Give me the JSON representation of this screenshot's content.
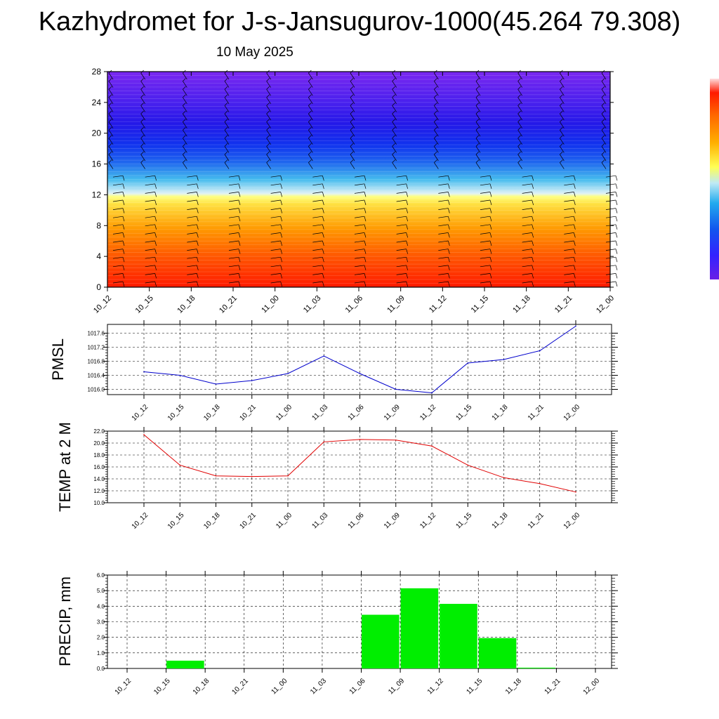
{
  "header": {
    "title": "Kazhydromet for J-s-Jansugurov-1000(45.264 79.308)",
    "date": "10 May 2025"
  },
  "time_labels": [
    "10_12",
    "10_15",
    "10_18",
    "10_21",
    "11_00",
    "11_03",
    "11_06",
    "11_09",
    "11_12",
    "11_15",
    "11_18",
    "11_21",
    "12_00"
  ],
  "chart_data": [
    {
      "type": "heatmap",
      "title": "",
      "y_ticks": [
        "0",
        "4",
        "8",
        "12",
        "16",
        "20",
        "24",
        "28"
      ],
      "ylim": [
        0,
        28
      ],
      "x": [
        "10_12",
        "10_15",
        "10_18",
        "10_21",
        "11_00",
        "11_03",
        "11_06",
        "11_09",
        "11_12",
        "11_15",
        "11_18",
        "11_21",
        "12_00"
      ],
      "colorbar": [
        "#6a1fe6",
        "#3322ff",
        "#1155ee",
        "#22aaee",
        "#bfeaf5",
        "#ffff55",
        "#ffb000",
        "#ff6600",
        "#ff1a00"
      ],
      "overlay": "wind barbs"
    },
    {
      "type": "line",
      "ylabel": "PMSL",
      "x": [
        "10_12",
        "10_15",
        "10_18",
        "10_21",
        "11_00",
        "11_03",
        "11_06",
        "11_09",
        "11_12",
        "11_15",
        "11_18",
        "11_21",
        "12_00"
      ],
      "values": [
        1016.5,
        1016.4,
        1016.15,
        1016.25,
        1016.45,
        1016.95,
        1016.45,
        1016.0,
        1015.9,
        1016.75,
        1016.85,
        1017.1,
        1017.8
      ],
      "y_ticks": [
        "1016.0",
        "1016.4",
        "1016.8",
        "1017.2",
        "1017.6"
      ],
      "ylim": [
        1015.85,
        1017.85
      ],
      "color": "#0000cc",
      "grid": true
    },
    {
      "type": "line",
      "ylabel": "TEMP at 2 M",
      "x": [
        "10_12",
        "10_15",
        "10_18",
        "10_21",
        "11_00",
        "11_03",
        "11_06",
        "11_09",
        "11_12",
        "11_15",
        "11_18",
        "11_21",
        "12_00"
      ],
      "values": [
        21.4,
        16.3,
        14.5,
        14.4,
        14.5,
        20.2,
        20.6,
        20.5,
        19.5,
        16.3,
        14.2,
        13.2,
        11.8
      ],
      "y_ticks": [
        "10.0",
        "12.0",
        "14.0",
        "16.0",
        "18.0",
        "20.0",
        "22.0"
      ],
      "ylim": [
        10,
        22
      ],
      "color": "#e00000",
      "grid": true
    },
    {
      "type": "bar",
      "ylabel": "PRECIP, mm",
      "x": [
        "10_12",
        "10_15",
        "10_18",
        "10_21",
        "11_00",
        "11_03",
        "11_06",
        "11_09",
        "11_12",
        "11_15",
        "11_18",
        "11_21",
        "12_00"
      ],
      "values": [
        0,
        0.5,
        0,
        0,
        0,
        0,
        3.45,
        5.15,
        4.15,
        1.95,
        0.05,
        0,
        0
      ],
      "y_ticks": [
        "0.0",
        "1.0",
        "2.0",
        "3.0",
        "4.0",
        "5.0",
        "6.0"
      ],
      "ylim": [
        0,
        6
      ],
      "color": "#00ee00",
      "grid": true
    }
  ]
}
